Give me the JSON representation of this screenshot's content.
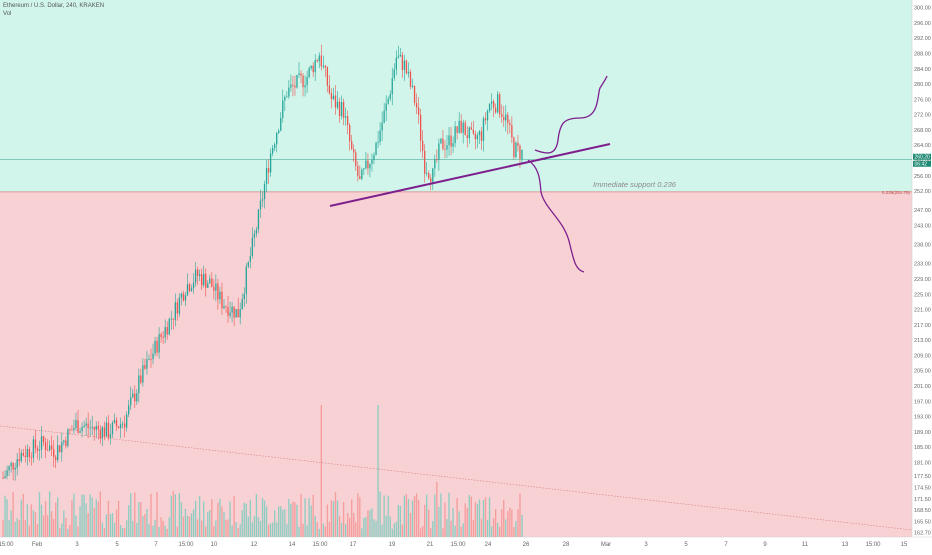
{
  "header": {
    "symbol_line": "Ethereum / U.S. Dollar, 240, KRAKEN",
    "vol_label": "Vol"
  },
  "chart_data": {
    "type": "candlestick",
    "title": "",
    "xlabel": "",
    "ylabel": "",
    "x_ticks": [
      "15:00",
      "Feb",
      "3",
      "5",
      "7",
      "15:00",
      "10",
      "12",
      "14",
      "15:00",
      "17",
      "19",
      "21",
      "15:00",
      "24",
      "26",
      "28",
      "Mar",
      "3",
      "5",
      "7",
      "9",
      "11",
      "13",
      "15:00",
      "15"
    ],
    "y_ticks": [
      300.0,
      296.0,
      292.0,
      288.0,
      284.0,
      280.0,
      276.0,
      272.0,
      268.0,
      264.0,
      260.0,
      256.0,
      252.0,
      247.0,
      243.0,
      238.0,
      233.0,
      229.0,
      225.0,
      221.0,
      217.0,
      213.0,
      209.0,
      205.0,
      201.0,
      197.0,
      193.0,
      189.0,
      185.0,
      181.0,
      177.5,
      174.5,
      171.5,
      168.5,
      165.5,
      162.7
    ],
    "ylim": [
      161.5,
      302
    ],
    "current_price_label": "260.20",
    "current_price": 260.2,
    "current_price_secondary": "06:42",
    "fib_label": "0.236(251.79)",
    "fib_level": 251.79,
    "annotation": "Immediate support 0.236",
    "zone_colors": {
      "upper": "#d1f5ea",
      "lower": "#f7d1d3"
    },
    "candle_colors": {
      "up": "#26a69a",
      "down": "#ef5350"
    },
    "volume_colors": {
      "up": "#8ccdc2",
      "down": "#f59c9c"
    },
    "drawing_color": "#7e1f8e",
    "candles": {
      "anchors": [
        [
          0,
          177
        ],
        [
          8,
          183
        ],
        [
          20,
          186
        ],
        [
          26,
          184
        ],
        [
          36,
          191
        ],
        [
          44,
          190
        ],
        [
          52,
          189
        ],
        [
          60,
          192
        ],
        [
          68,
          203
        ],
        [
          76,
          212
        ],
        [
          84,
          220
        ],
        [
          90,
          227
        ],
        [
          96,
          230
        ],
        [
          102,
          228
        ],
        [
          108,
          223
        ],
        [
          116,
          220
        ],
        [
          126,
          245
        ],
        [
          132,
          262
        ],
        [
          140,
          278
        ],
        [
          150,
          282
        ],
        [
          156,
          288
        ],
        [
          162,
          276
        ],
        [
          168,
          273
        ],
        [
          172,
          262
        ],
        [
          176,
          254
        ],
        [
          180,
          259
        ],
        [
          184,
          264
        ],
        [
          190,
          276
        ],
        [
          194,
          287
        ],
        [
          198,
          285
        ],
        [
          204,
          274
        ],
        [
          208,
          259
        ],
        [
          212,
          256
        ],
        [
          216,
          264
        ],
        [
          220,
          265
        ],
        [
          226,
          269
        ],
        [
          232,
          265
        ],
        [
          236,
          267
        ],
        [
          240,
          275
        ],
        [
          244,
          275
        ],
        [
          248,
          271
        ],
        [
          252,
          263
        ],
        [
          256,
          262
        ]
      ],
      "count": 257
    }
  }
}
